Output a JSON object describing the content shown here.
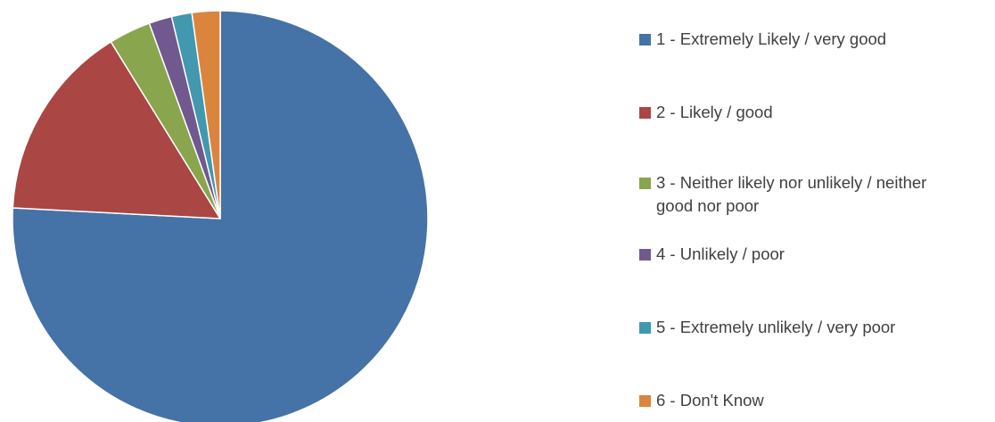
{
  "chart_data": {
    "type": "pie",
    "title": "",
    "start_angle_deg": 0,
    "direction": "clockwise",
    "slices": [
      {
        "label": "1 - Extremely Likely / very good",
        "value": 76.5,
        "color": "#4572A7"
      },
      {
        "label": "2 - Likely / good",
        "value": 15.5,
        "color": "#AA4643"
      },
      {
        "label": "3 - Neither likely nor unlikely / neither good nor poor",
        "value": 3.3,
        "color": "#89A54E"
      },
      {
        "label": "4 - Unlikely / poor",
        "value": 1.8,
        "color": "#71588F"
      },
      {
        "label": "5 - Extremely unlikely / very poor",
        "value": 1.6,
        "color": "#4198AF"
      },
      {
        "label": "6 - Don't Know",
        "value": 2.2,
        "color": "#DB843D"
      }
    ],
    "legend_position": "right"
  }
}
